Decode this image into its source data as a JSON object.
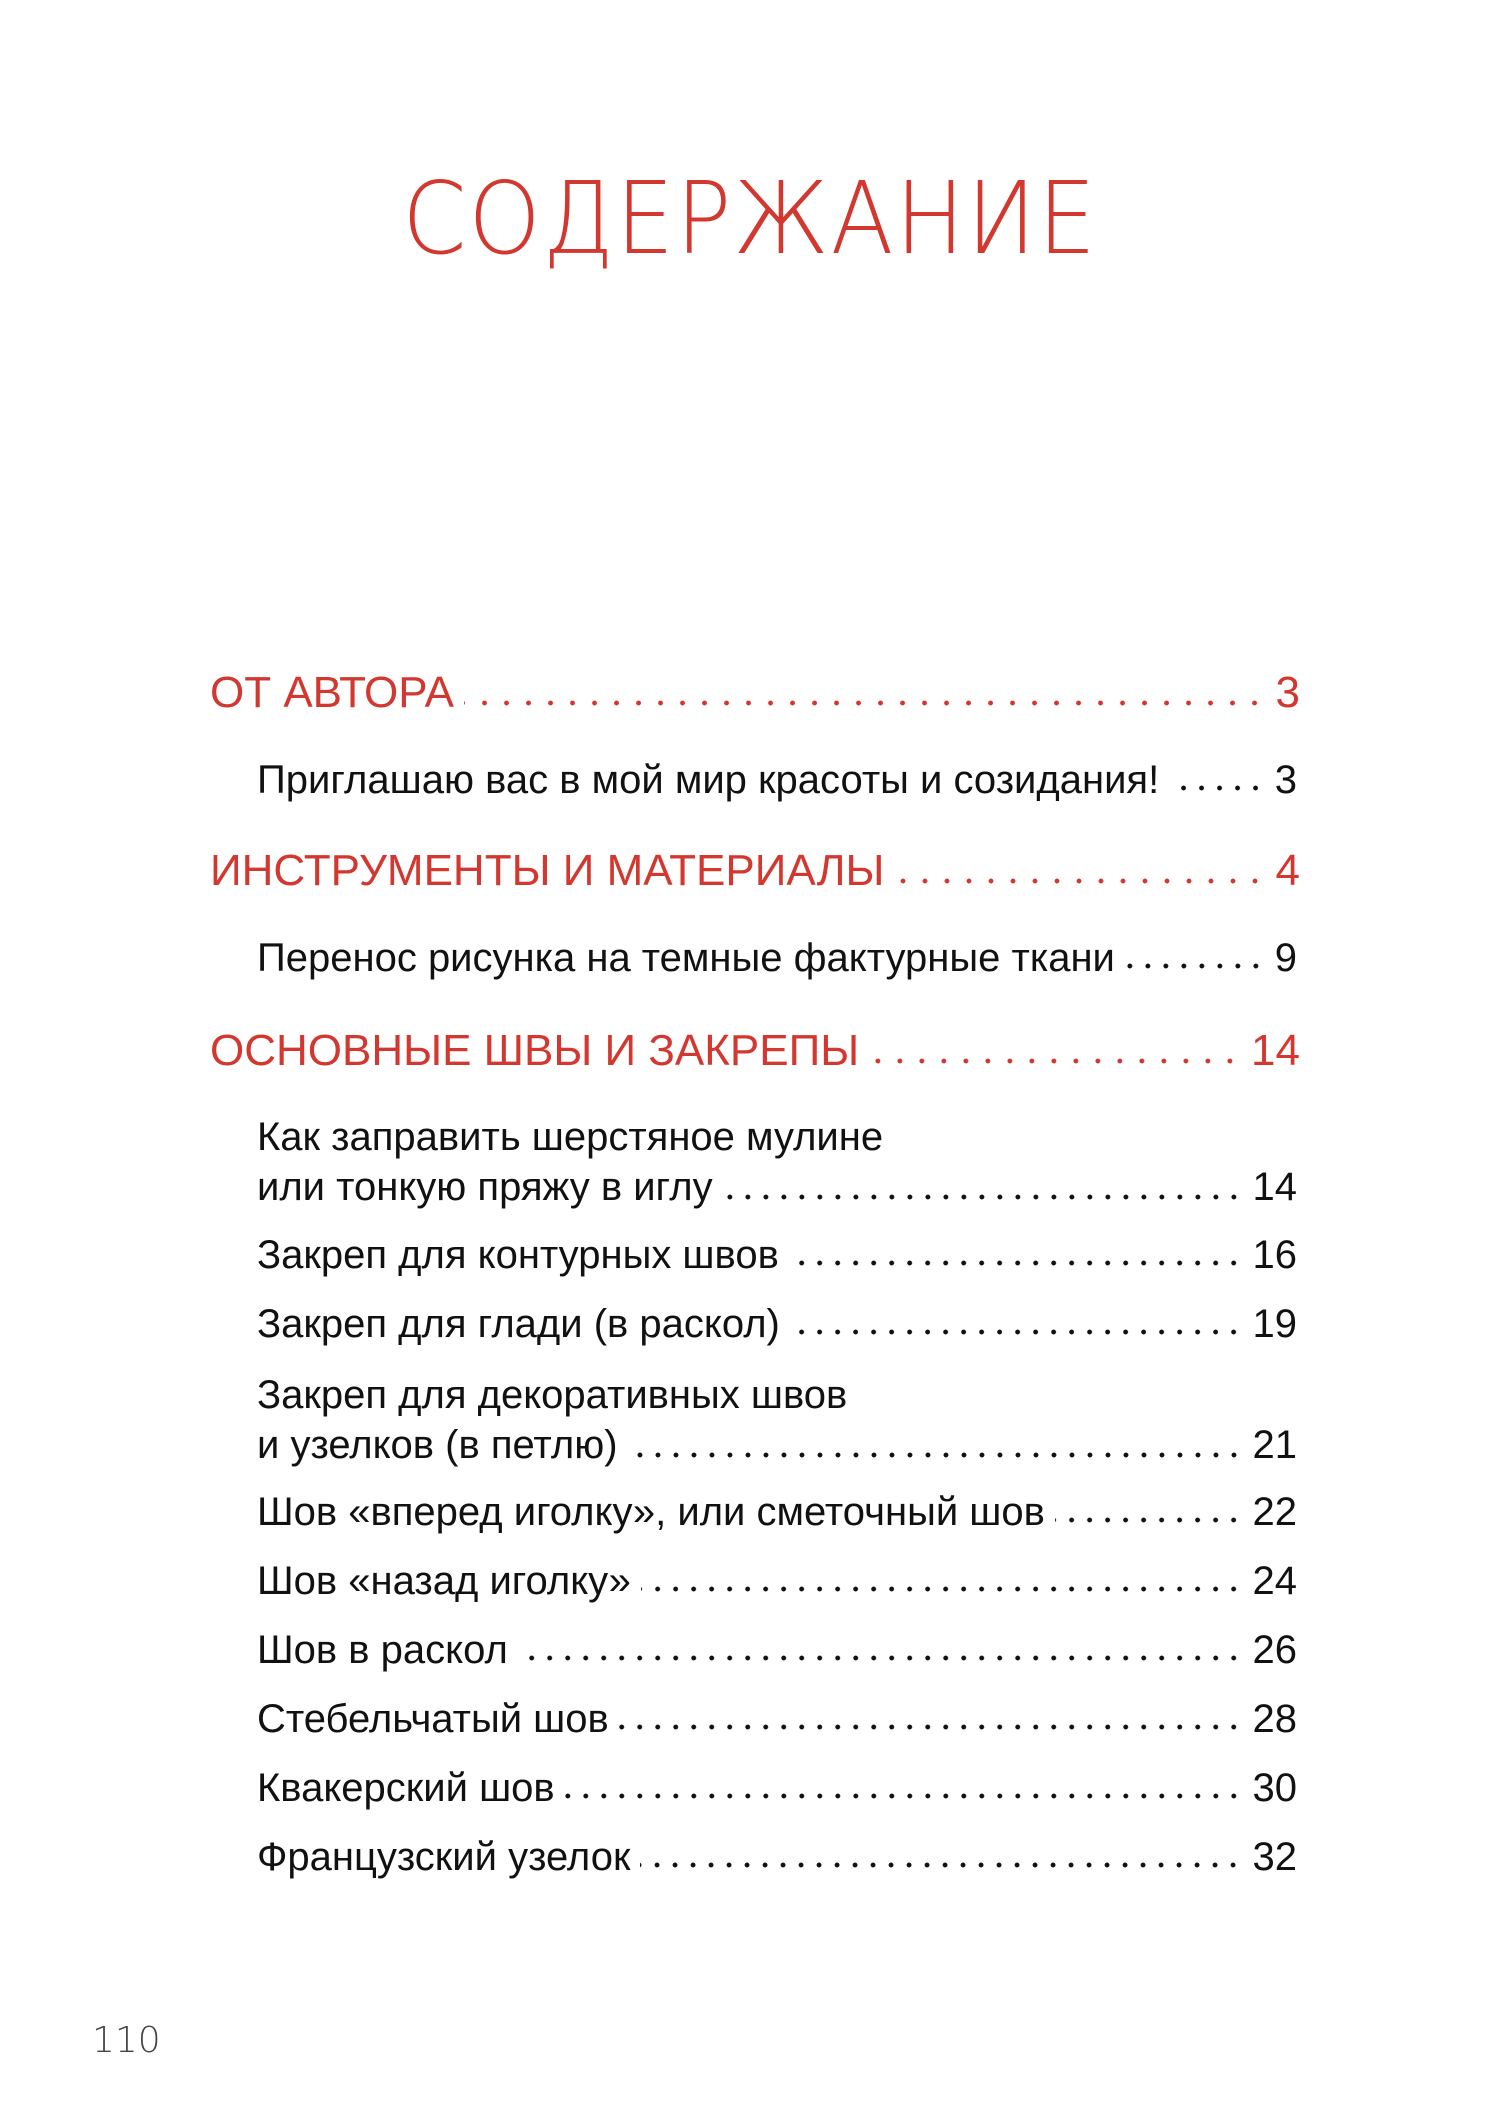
{
  "title": "СОДЕРЖАНИЕ",
  "toc": [
    {
      "text": "ОТ АВТОРА",
      "page": "3"
    },
    {
      "text": "Приглашаю вас в мой мир красоты и созидания!",
      "page": "3"
    },
    {
      "text": "ИНСТРУМЕНТЫ И МАТЕРИАЛЫ",
      "page": "4"
    },
    {
      "text": "Перенос рисунка на темные фактурные ткани",
      "page": "9"
    },
    {
      "text": "ОСНОВНЫЕ ШВЫ И ЗАКРЕПЫ",
      "page": "14"
    },
    {
      "line1": "Как заправить шерстяное мулине",
      "line2": "или тонкую пряжу в иглу",
      "page": "14"
    },
    {
      "text": "Закреп для контурных швов",
      "page": "16"
    },
    {
      "text": "Закреп для глади (в раскол)",
      "page": "19"
    },
    {
      "line1": "Закреп для декоративных швов",
      "line2": "и узелков (в петлю)",
      "page": "21"
    },
    {
      "text": "Шов «вперед иголку», или сметочный шов",
      "page": "22"
    },
    {
      "text": "Шов «назад иголку»",
      "page": "24"
    },
    {
      "text": "Шов в раскол",
      "page": "26"
    },
    {
      "text": "Стебельчатый шов",
      "page": "28"
    },
    {
      "text": "Квакерский шов",
      "page": "30"
    },
    {
      "text": "Французский узелок",
      "page": "32"
    }
  ],
  "page_number": "110",
  "colors": {
    "accent": "#d2382f",
    "text": "#111111"
  }
}
